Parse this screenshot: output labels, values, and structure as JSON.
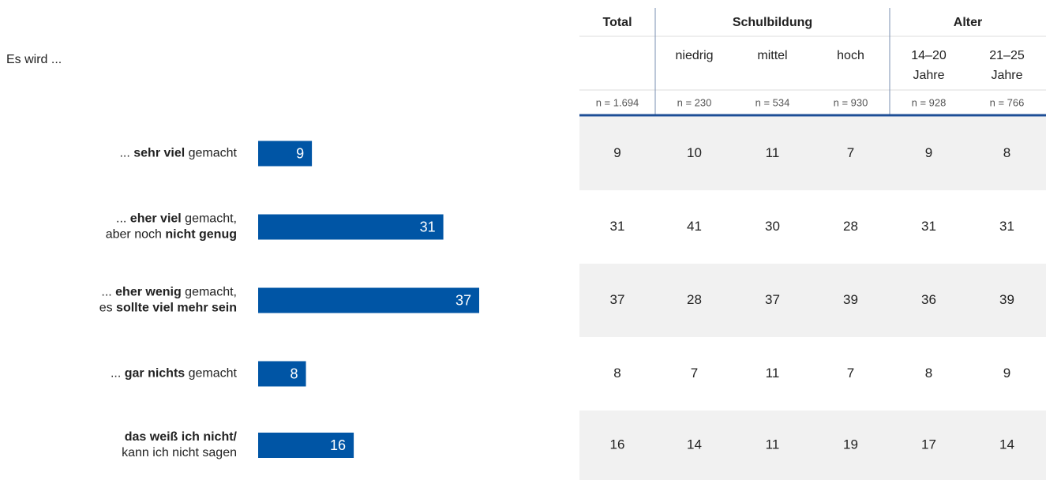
{
  "chart_data": {
    "type": "bar",
    "orientation": "horizontal",
    "subtitle": "Es wird ...",
    "categories": [
      [
        [
          {
            "text": "... "
          },
          {
            "text": "sehr viel",
            "bold": true
          },
          {
            "text": " gemacht"
          }
        ]
      ],
      [
        [
          {
            "text": "... "
          },
          {
            "text": "eher viel",
            "bold": true
          },
          {
            "text": " gemacht,"
          }
        ],
        [
          {
            "text": "aber noch "
          },
          {
            "text": "nicht genug",
            "bold": true
          }
        ]
      ],
      [
        [
          {
            "text": "... "
          },
          {
            "text": "eher wenig",
            "bold": true
          },
          {
            "text": " gemacht,"
          }
        ],
        [
          {
            "text": "es "
          },
          {
            "text": "sollte viel mehr sein",
            "bold": true
          }
        ]
      ],
      [
        [
          {
            "text": "... "
          },
          {
            "text": "gar nichts",
            "bold": true
          },
          {
            "text": " gemacht"
          }
        ]
      ],
      [
        [
          {
            "text": "das weiß ich nicht/",
            "bold": true
          }
        ],
        [
          {
            "text": "kann ich nicht sagen"
          }
        ]
      ]
    ],
    "values": [
      9,
      31,
      37,
      8,
      16
    ],
    "color": "#0055a5"
  },
  "table": {
    "groups": [
      {
        "label": "Total",
        "span": 1
      },
      {
        "label": "Schulbildung",
        "span": 3
      },
      {
        "label": "Alter",
        "span": 2
      }
    ],
    "columns": [
      {
        "n": "n = 1.694"
      },
      {
        "label": [
          "niedrig"
        ],
        "n": "n = 230"
      },
      {
        "label": [
          "mittel"
        ],
        "n": "n = 534"
      },
      {
        "label": [
          "hoch"
        ],
        "n": "n = 930"
      },
      {
        "label": [
          "14–20",
          "Jahre"
        ],
        "n": "n = 928"
      },
      {
        "label": [
          "21–25",
          "Jahre"
        ],
        "n": "n = 766"
      }
    ],
    "rows": [
      [
        9,
        10,
        11,
        7,
        9,
        8
      ],
      [
        31,
        41,
        30,
        28,
        31,
        31
      ],
      [
        37,
        28,
        37,
        39,
        36,
        39
      ],
      [
        8,
        7,
        11,
        7,
        8,
        9
      ],
      [
        16,
        14,
        11,
        19,
        17,
        14
      ]
    ]
  }
}
